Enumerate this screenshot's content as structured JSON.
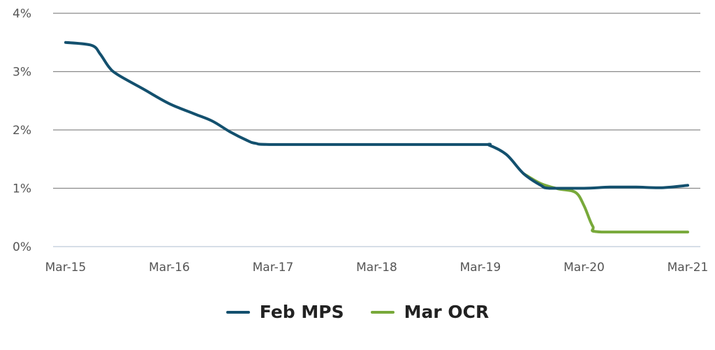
{
  "chart_data": {
    "type": "line",
    "title": "",
    "xlabel": "",
    "ylabel": "",
    "ylim": [
      0,
      4
    ],
    "y_ticks": [
      0,
      1,
      2,
      3,
      4
    ],
    "y_tick_labels": [
      "0%",
      "1%",
      "2%",
      "3%",
      "4%"
    ],
    "x_ticks": [
      "2015-03",
      "2016-03",
      "2017-03",
      "2018-03",
      "2019-03",
      "2020-03",
      "2021-03"
    ],
    "x_tick_labels": [
      "Mar-15",
      "Mar-16",
      "Mar-17",
      "Mar-18",
      "Mar-19",
      "Mar-20",
      "Mar-21"
    ],
    "grid": "horizontal",
    "legend_position": "bottom",
    "series": [
      {
        "name": "Feb MPS",
        "color": "#13506e",
        "points": [
          [
            "2015-03",
            3.5
          ],
          [
            "2015-06",
            3.45
          ],
          [
            "2015-07",
            3.3
          ],
          [
            "2015-08",
            3.08
          ],
          [
            "2015-09",
            2.95
          ],
          [
            "2015-12",
            2.7
          ],
          [
            "2016-03",
            2.45
          ],
          [
            "2016-06",
            2.27
          ],
          [
            "2016-08",
            2.15
          ],
          [
            "2016-10",
            1.97
          ],
          [
            "2016-12",
            1.82
          ],
          [
            "2017-01",
            1.77
          ],
          [
            "2017-03",
            1.75
          ],
          [
            "2018-03",
            1.75
          ],
          [
            "2019-03",
            1.75
          ],
          [
            "2019-04",
            1.74
          ],
          [
            "2019-06",
            1.58
          ],
          [
            "2019-08",
            1.25
          ],
          [
            "2019-10",
            1.05
          ],
          [
            "2019-11",
            1.0
          ],
          [
            "2020-03",
            1.0
          ],
          [
            "2020-06",
            1.02
          ],
          [
            "2020-09",
            1.02
          ],
          [
            "2020-12",
            1.01
          ],
          [
            "2021-03",
            1.05
          ]
        ]
      },
      {
        "name": "Mar OCR",
        "color": "#78a93a",
        "points": [
          [
            "2019-08",
            1.25
          ],
          [
            "2019-10",
            1.08
          ],
          [
            "2019-12",
            0.99
          ],
          [
            "2020-02",
            0.93
          ],
          [
            "2020-03",
            0.7
          ],
          [
            "2020-04",
            0.35
          ],
          [
            "2020-05",
            0.25
          ],
          [
            "2021-03",
            0.25
          ]
        ]
      }
    ]
  }
}
